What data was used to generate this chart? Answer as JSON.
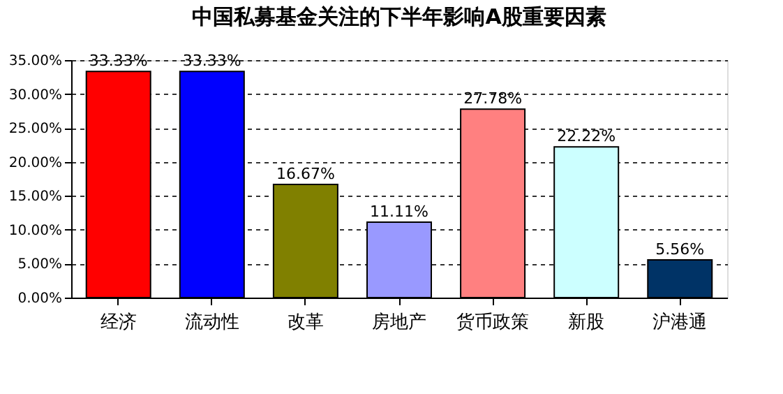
{
  "chart_data": {
    "type": "bar",
    "title": "中国私募基金关注的下半年影响A股重要因素",
    "categories": [
      "经济",
      "流动性",
      "改革",
      "房地产",
      "货币政策",
      "新股",
      "沪港通"
    ],
    "values": [
      33.33,
      33.33,
      16.67,
      11.11,
      27.78,
      22.22,
      5.56
    ],
    "value_labels": [
      "33.33%",
      "33.33%",
      "16.67%",
      "11.11%",
      "27.78%",
      "22.22%",
      "5.56%"
    ],
    "colors": [
      "#ff0000",
      "#0000ff",
      "#808000",
      "#9999ff",
      "#ff8080",
      "#ccffff",
      "#003366"
    ],
    "ylim": [
      0,
      35
    ],
    "yticks": [
      {
        "value": 0,
        "label": "0.00%"
      },
      {
        "value": 5,
        "label": "5.00%"
      },
      {
        "value": 10,
        "label": "10.00%"
      },
      {
        "value": 15,
        "label": "15.00%"
      },
      {
        "value": 20,
        "label": "20.00%"
      },
      {
        "value": 25,
        "label": "25.00%"
      },
      {
        "value": 30,
        "label": "30.00%"
      },
      {
        "value": 35,
        "label": "35.00%"
      }
    ],
    "grid": "y"
  }
}
